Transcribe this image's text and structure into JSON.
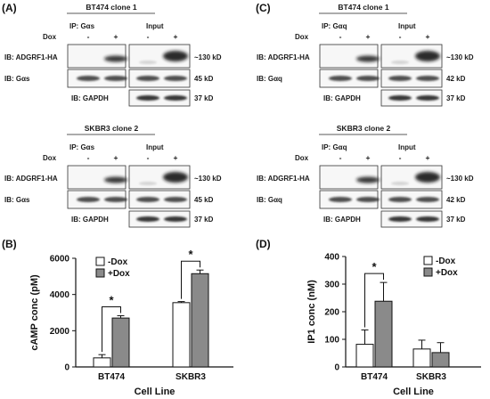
{
  "panels": {
    "A": {
      "letter": "(A)"
    },
    "B": {
      "letter": "(B)"
    },
    "C": {
      "letter": "(C)"
    },
    "D": {
      "letter": "(D)"
    }
  },
  "blots": {
    "dox_label": "Dox",
    "minus": "-",
    "plus": "+",
    "input_label": "Input",
    "gapdh_label": "IB: GAPDH",
    "adgrf1_label": "IB: ADGRF1-HA",
    "mw_130": "~130 kD",
    "mw_45": "45 kD",
    "mw_42": "42 kD",
    "mw_37": "37 kD",
    "A_top": {
      "title": "BT474 clone 1",
      "ip": "IP: Gαs",
      "ib2": "IB: Gαs"
    },
    "A_bottom": {
      "title": "SKBR3 clone 2",
      "ip": "IP: Gαs",
      "ib2": "IB: Gαs"
    },
    "C_top": {
      "title": "BT474 clone 1",
      "ip": "IP: Gαq",
      "ib2": "IB: Gαq"
    },
    "C_bottom": {
      "title": "SKBR3 clone 2",
      "ip": "IP: Gαq",
      "ib2": "IB: Gαq"
    }
  },
  "chart_data": [
    {
      "type": "bar",
      "panel": "B",
      "categories": [
        "BT474",
        "SKBR3"
      ],
      "series": [
        {
          "name": "-Dox",
          "values": [
            500,
            3550
          ],
          "errors": [
            180,
            60
          ],
          "color": "#ffffff"
        },
        {
          "name": "+Dox",
          "values": [
            2700,
            5150
          ],
          "errors": [
            130,
            200
          ],
          "color": "#8a8a8a"
        }
      ],
      "xlabel": "Cell Line",
      "ylabel": "cAMP conc (pM)",
      "ylim": [
        0,
        6000
      ],
      "yticks": [
        "0",
        "2000",
        "4000",
        "6000"
      ],
      "significance": [
        "*",
        "*"
      ],
      "legend": "top-left",
      "grid": false
    },
    {
      "type": "bar",
      "panel": "D",
      "categories": [
        "BT474",
        "SKBR3"
      ],
      "series": [
        {
          "name": "-Dox",
          "values": [
            82,
            65
          ],
          "errors": [
            52,
            32
          ],
          "color": "#ffffff"
        },
        {
          "name": "+Dox",
          "values": [
            238,
            52
          ],
          "errors": [
            68,
            36
          ],
          "color": "#8a8a8a"
        }
      ],
      "xlabel": "Cell Line",
      "ylabel": "IP1 conc (nM)",
      "ylim": [
        0,
        400
      ],
      "yticks": [
        "0",
        "100",
        "200",
        "300",
        "400"
      ],
      "significance": [
        "*"
      ],
      "legend": "top-right",
      "grid": false
    }
  ]
}
